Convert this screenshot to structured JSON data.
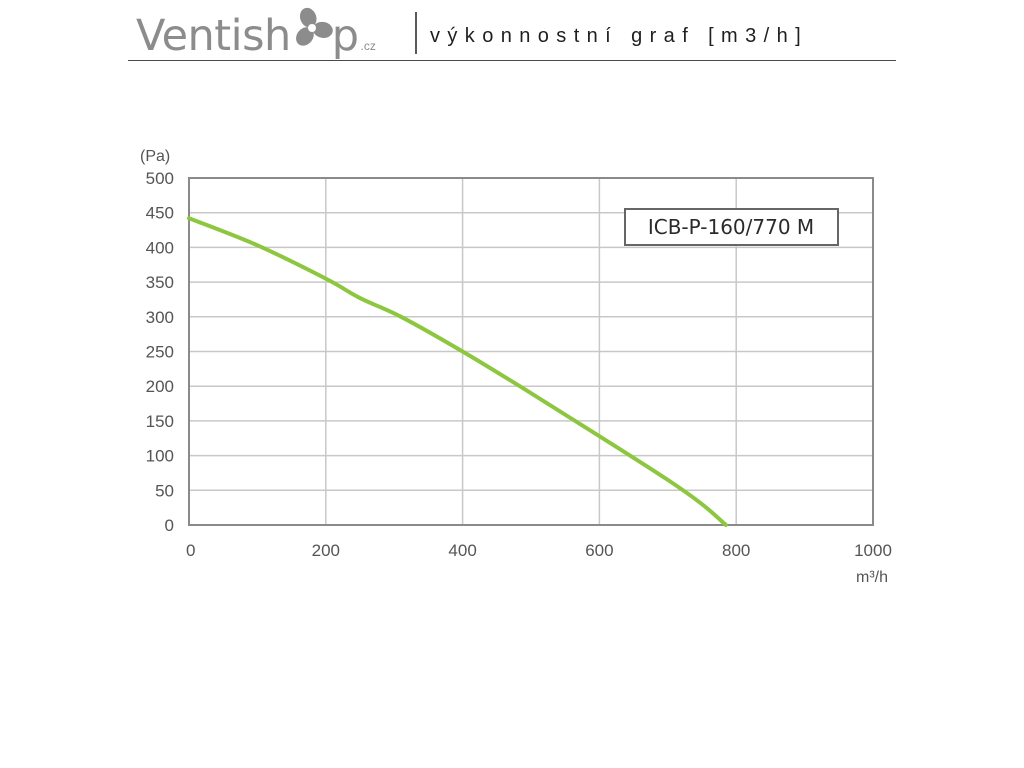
{
  "header": {
    "logo_text_1": "Ventish",
    "logo_text_2": "p",
    "logo_tld": ".cz",
    "title": "výkonnostní graf [m3/h]",
    "icon": "fan-icon"
  },
  "colors": {
    "curve": "#8dc63f",
    "grid": "#c8c8c8",
    "frame": "#8a8a8a",
    "logo": "#8c8c8c"
  },
  "chart_data": {
    "type": "line",
    "title": "",
    "xlabel": "m³/h",
    "ylabel": "(Pa)",
    "xlim": [
      0,
      1000
    ],
    "ylim": [
      0,
      500
    ],
    "x_ticks": [
      0,
      200,
      400,
      600,
      800,
      1000
    ],
    "y_ticks": [
      0,
      50,
      100,
      150,
      200,
      250,
      300,
      350,
      400,
      450,
      500
    ],
    "grid": true,
    "legend_position": "top-right",
    "series": [
      {
        "name": "ICB-P-160/770 M",
        "x": [
          0,
          100,
          200,
          250,
          310,
          400,
          500,
          600,
          700,
          750,
          785
        ],
        "y": [
          442,
          403,
          355,
          327,
          300,
          250,
          190,
          128,
          65,
          30,
          0
        ]
      }
    ]
  }
}
